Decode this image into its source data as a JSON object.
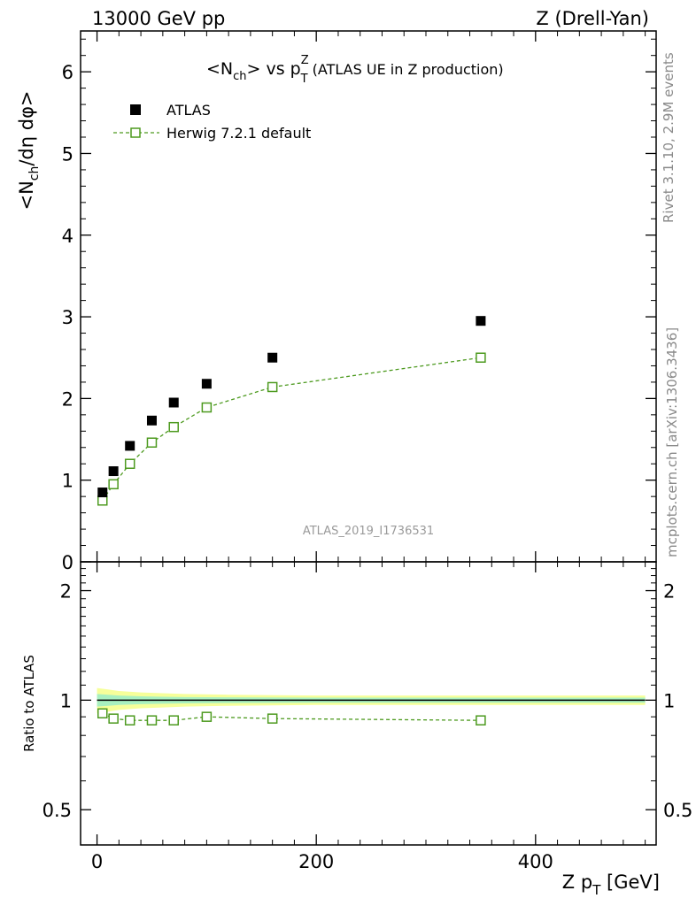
{
  "header": {
    "left": "13000 GeV pp",
    "right": "Z (Drell-Yan)"
  },
  "side": {
    "top": "Rivet 3.1.10,  2.9M events",
    "bottom": "mcplots.cern.ch [arXiv:1306.3436]"
  },
  "watermark": "ATLAS_2019_I1736531",
  "chart_data": [
    {
      "type": "scatter",
      "title": "<Nch> vs pTZ (ATLAS UE in Z production)",
      "title_parts": {
        "main": "N",
        "main_sub": "ch",
        "vs": "> vs p",
        "p_sup": "Z",
        "p_sub": "T",
        "rest": " (ATLAS UE in Z production)",
        "open": "<"
      },
      "ylabel": "<Nch/dη dφ>",
      "ylabel_parts": {
        "a": "<N",
        "sub": "ch",
        "b": "/dη dφ>"
      },
      "xlabel": "Z pT [GeV]",
      "xlim": [
        -15,
        510
      ],
      "ylim": [
        0,
        6.5
      ],
      "y_ticks": [
        0,
        1,
        2,
        3,
        4,
        5,
        6
      ],
      "y_tick_labels": [
        "0",
        "1",
        "2",
        "3",
        "4",
        "5",
        "6"
      ],
      "legend_position": "top-left",
      "series": [
        {
          "name": "ATLAS",
          "style": "filled-square",
          "color": "#000000",
          "x": [
            5,
            15,
            30,
            50,
            70,
            100,
            160,
            350
          ],
          "y": [
            0.85,
            1.11,
            1.42,
            1.73,
            1.95,
            2.18,
            2.5,
            2.95
          ]
        },
        {
          "name": "Herwig 7.2.1 default",
          "style": "open-square-dashed",
          "color": "#4d9a1f",
          "x": [
            5,
            15,
            30,
            50,
            70,
            100,
            160,
            350
          ],
          "y": [
            0.75,
            0.95,
            1.2,
            1.46,
            1.65,
            1.89,
            2.14,
            2.5
          ]
        }
      ]
    },
    {
      "type": "scatter",
      "ylabel": "Ratio to ATLAS",
      "xlabel": "Z pT [GeV]",
      "xlabel_parts": {
        "a": "Z p",
        "sub": "T",
        "b": " [GeV]"
      },
      "xlim": [
        -15,
        510
      ],
      "x_ticks": [
        0,
        200,
        400
      ],
      "x_tick_labels": [
        "0",
        "200",
        "400"
      ],
      "ylim": [
        0.4,
        2.4
      ],
      "y_scale": "log",
      "y_ticks": [
        0.5,
        1,
        2
      ],
      "y_tick_labels": [
        "0.5",
        "1",
        "2"
      ],
      "reference_line": 1,
      "uncertainty_band": {
        "x": [
          0,
          10,
          20,
          40,
          60,
          80,
          120,
          200,
          500
        ],
        "outer": [
          0.08,
          0.07,
          0.06,
          0.05,
          0.045,
          0.04,
          0.035,
          0.03,
          0.03
        ],
        "inner": [
          0.04,
          0.035,
          0.03,
          0.025,
          0.022,
          0.02,
          0.018,
          0.016,
          0.016
        ]
      },
      "series": [
        {
          "name": "Herwig 7.2.1 default",
          "color": "#4d9a1f",
          "x": [
            5,
            15,
            30,
            50,
            70,
            100,
            160,
            350
          ],
          "y": [
            0.92,
            0.89,
            0.88,
            0.88,
            0.88,
            0.9,
            0.89,
            0.88
          ]
        }
      ]
    }
  ]
}
